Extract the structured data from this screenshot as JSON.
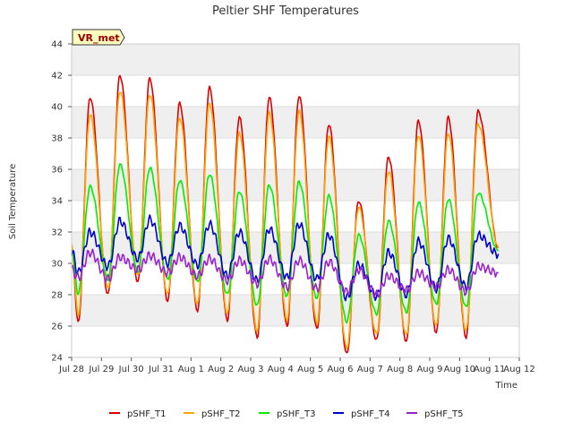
{
  "chart_data": {
    "type": "line",
    "title": "Peltier SHF Temperatures",
    "xlabel": "Time",
    "ylabel": "Soil Temperature",
    "badge": "VR_met",
    "x_tick_labels": [
      "Jul 28",
      "Jul 29",
      "Jul 30",
      "Jul 31",
      "Aug 1",
      "Aug 2",
      "Aug 3",
      "Aug 4",
      "Aug 5",
      "Aug 6",
      "Aug 7",
      "Aug 8",
      "Aug 9",
      "Aug 10",
      "Aug 11",
      "Aug 12"
    ],
    "y_ticks": [
      24,
      26,
      28,
      30,
      32,
      34,
      36,
      38,
      40,
      42,
      44
    ],
    "ylim": [
      24,
      44
    ],
    "xlim_days": [
      0,
      15
    ],
    "grid": "horizontal bands",
    "legend_position": "bottom",
    "series": [
      {
        "name": "pSHF_T1",
        "color": "#dd0000",
        "daily_max": [
          40.6,
          42.0,
          41.8,
          40.2,
          41.2,
          39.3,
          40.6,
          40.7,
          38.9,
          34.0,
          36.8,
          39.1,
          39.3,
          39.7
        ],
        "daily_min": [
          26.2,
          28.0,
          28.8,
          27.6,
          27.0,
          26.4,
          25.3,
          26.0,
          25.8,
          24.2,
          25.1,
          25.0,
          25.6,
          25.3
        ],
        "start": 31.0,
        "end": 31.0
      },
      {
        "name": "pSHF_T2",
        "color": "#ffa500",
        "daily_max": [
          39.5,
          41.0,
          40.8,
          39.3,
          40.2,
          38.3,
          39.6,
          39.7,
          38.1,
          33.6,
          35.9,
          38.2,
          38.3,
          38.9
        ],
        "daily_min": [
          26.7,
          28.4,
          29.2,
          28.0,
          27.4,
          26.8,
          25.7,
          26.4,
          26.2,
          24.6,
          25.5,
          25.4,
          26.0,
          25.7
        ],
        "start": 31.1,
        "end": 31.0
      },
      {
        "name": "pSHF_T3",
        "color": "#00ee00",
        "daily_max": [
          34.9,
          36.3,
          36.1,
          35.3,
          35.7,
          34.6,
          35.0,
          35.2,
          34.3,
          31.8,
          32.7,
          33.9,
          34.1,
          34.5
        ],
        "daily_min": [
          28.1,
          29.0,
          29.5,
          29.0,
          28.8,
          28.0,
          27.3,
          27.9,
          27.8,
          26.3,
          26.8,
          26.9,
          27.4,
          27.2
        ],
        "start": 30.9,
        "end": 30.8
      },
      {
        "name": "pSHF_T4",
        "color": "#0000cc",
        "daily_max": [
          32.0,
          32.7,
          32.8,
          32.4,
          32.5,
          32.0,
          32.2,
          32.5,
          31.8,
          29.9,
          30.7,
          31.4,
          31.6,
          31.8
        ],
        "daily_min": [
          29.4,
          29.8,
          30.3,
          30.0,
          29.9,
          29.2,
          28.9,
          29.1,
          29.0,
          27.8,
          27.9,
          28.0,
          28.4,
          28.5
        ],
        "start": 30.8,
        "end": 30.6
      },
      {
        "name": "pSHF_T5",
        "color": "#9922cc",
        "daily_max": [
          30.7,
          30.4,
          30.5,
          30.4,
          30.3,
          30.2,
          30.3,
          30.2,
          30.1,
          29.6,
          29.2,
          29.4,
          29.6,
          29.8
        ],
        "daily_min": [
          29.1,
          29.0,
          29.6,
          29.4,
          29.2,
          28.9,
          28.7,
          28.5,
          28.4,
          28.2,
          28.0,
          28.3,
          28.5,
          28.2
        ],
        "start": 29.6,
        "end": 29.4
      }
    ]
  }
}
